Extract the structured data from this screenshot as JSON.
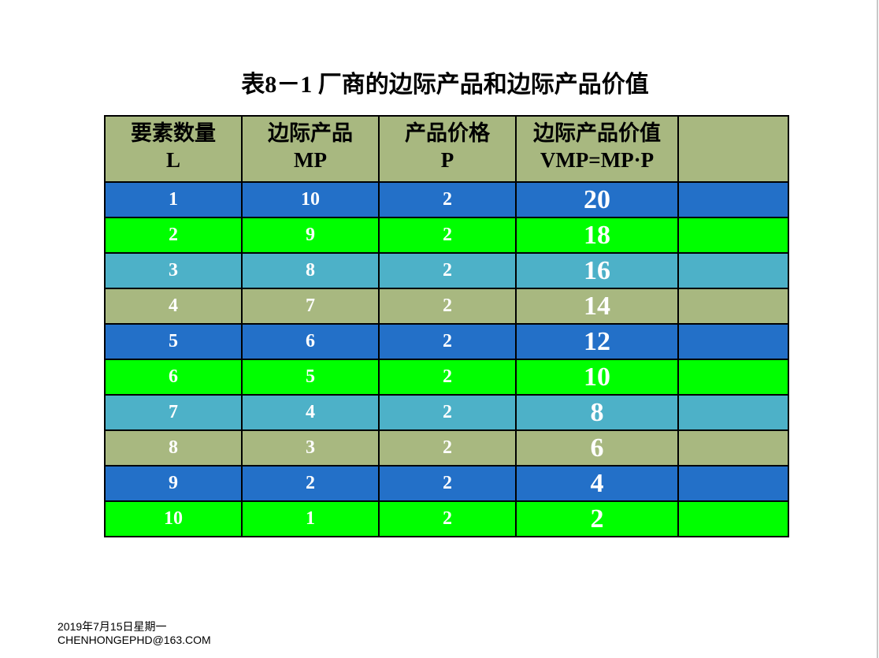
{
  "title": "表8－1  厂商的边际产品和边际产品价值",
  "table": {
    "headers": [
      [
        "要素数量",
        "L"
      ],
      [
        "边际产品",
        "MP"
      ],
      [
        "产品价格",
        "P"
      ],
      [
        "边际产品价值",
        "VMP=MP·P"
      ],
      [
        "",
        ""
      ]
    ],
    "rows": [
      {
        "L": "1",
        "MP": "10",
        "P": "2",
        "VMP": "20",
        "color": "#2370c8"
      },
      {
        "L": "2",
        "MP": "9",
        "P": "2",
        "VMP": "18",
        "color": "#00ff00"
      },
      {
        "L": "3",
        "MP": "8",
        "P": "2",
        "VMP": "16",
        "color": "#4db1c8"
      },
      {
        "L": "4",
        "MP": "7",
        "P": "2",
        "VMP": "14",
        "color": "#a8b880"
      },
      {
        "L": "5",
        "MP": "6",
        "P": "2",
        "VMP": "12",
        "color": "#2370c8"
      },
      {
        "L": "6",
        "MP": "5",
        "P": "2",
        "VMP": "10",
        "color": "#00ff00"
      },
      {
        "L": "7",
        "MP": "4",
        "P": "2",
        "VMP": "8",
        "color": "#4db1c8"
      },
      {
        "L": "8",
        "MP": "3",
        "P": "2",
        "VMP": "6",
        "color": "#a8b880"
      },
      {
        "L": "9",
        "MP": "2",
        "P": "2",
        "VMP": "4",
        "color": "#2370c8"
      },
      {
        "L": "10",
        "MP": "1",
        "P": "2",
        "VMP": "2",
        "color": "#00ff00"
      }
    ]
  },
  "footer": {
    "date": "2019年7月15日星期一",
    "email": "CHENHONGEPHD@163.COM"
  }
}
